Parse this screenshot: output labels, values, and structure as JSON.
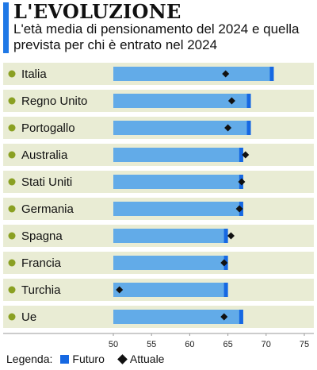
{
  "header": {
    "title": "L'EVOLUZIONE",
    "subtitle": "L'età media di pensionamento del 2024 e quella prevista per chi è entrato nel 2024"
  },
  "colors": {
    "accent": "#1f78e6",
    "bar_light": "#62abe8",
    "bar_cap": "#1668e2",
    "row_bg": "#e9ecd4",
    "bullet": "#8aa022",
    "marker": "#111111"
  },
  "chart_data": {
    "type": "bar",
    "orientation": "horizontal",
    "categories": [
      "Italia",
      "Regno Unito",
      "Portogallo",
      "Australia",
      "Stati Uniti",
      "Germania",
      "Spagna",
      "Francia",
      "Turchia",
      "Ue"
    ],
    "series": [
      {
        "name": "Futuro",
        "values": [
          71.0,
          68.0,
          68.0,
          67.0,
          67.0,
          67.0,
          65.0,
          65.0,
          65.0,
          67.0
        ],
        "marker": "bar"
      },
      {
        "name": "Attuale",
        "values": [
          64.7,
          65.5,
          65.0,
          67.3,
          66.8,
          66.5,
          65.4,
          64.5,
          50.8,
          64.5
        ],
        "marker": "diamond"
      }
    ],
    "xlim": [
      50,
      75
    ],
    "xticks": [
      "50",
      "55",
      "60",
      "65",
      "70",
      "75"
    ],
    "grid": false,
    "legend_position": "bottom-left"
  },
  "legend": {
    "label": "Legenda:",
    "items": [
      "Futuro",
      "Attuale"
    ]
  }
}
